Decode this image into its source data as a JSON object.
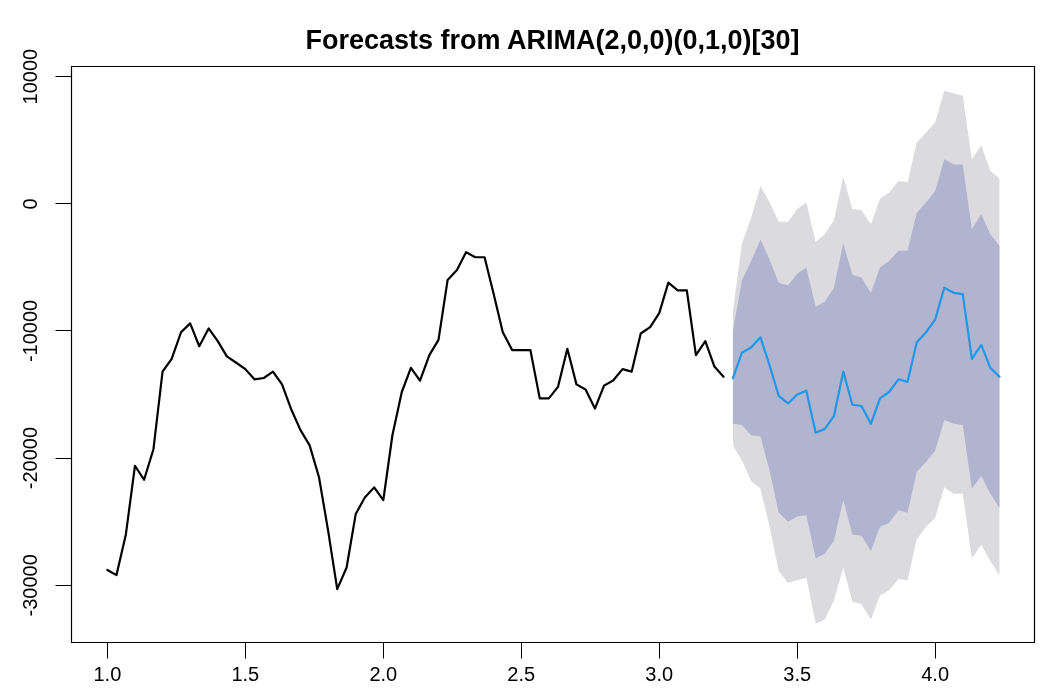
{
  "chart_data": {
    "type": "line",
    "title": "Forecasts from ARIMA(2,0,0)(0,1,0)[30]",
    "xlim": [
      0.87,
      4.36
    ],
    "ylim": [
      -34500,
      10800
    ],
    "xticks": [
      {
        "value": 1,
        "label": "1.0"
      },
      1.5,
      {
        "value": 2,
        "label": "2.0"
      },
      2.5,
      {
        "value": 3,
        "label": "3.0"
      },
      3.5,
      {
        "value": 4,
        "label": "4.0"
      }
    ],
    "yticks": [
      -30000,
      -20000,
      -10000,
      0,
      10000
    ],
    "grid": false,
    "series": [
      {
        "type": "line",
        "color": "#dbdbdf",
        "x": [
          3.267,
          3.3,
          3.333,
          3.367,
          3.4,
          3.433,
          3.467,
          3.5,
          3.533,
          3.567,
          3.6,
          3.633,
          3.667,
          3.7,
          3.733,
          3.767,
          3.8,
          3.833,
          3.867,
          3.9,
          3.933,
          3.967,
          4,
          4.033,
          4.067,
          4.1,
          4.133,
          4.167,
          4.2,
          4.233
        ],
        "values": [
          null,
          null,
          null,
          null,
          null,
          null,
          null,
          null,
          null,
          null,
          null,
          null,
          null,
          null,
          null,
          null,
          null,
          null,
          null,
          null,
          null,
          null,
          null,
          null,
          null,
          null,
          null,
          null,
          null,
          null
        ],
        "upper": [
          -8400,
          -3100,
          -1100,
          1400,
          100,
          -1400,
          -1400,
          -400,
          100,
          -3000,
          -2400,
          -1300,
          2100,
          -400,
          -500,
          -1600,
          400,
          900,
          1800,
          1700,
          4800,
          5600,
          6400,
          8900,
          8700,
          8500,
          3500,
          4600,
          2600,
          2000
        ],
        "lower": [
          -19000,
          -20200,
          -21800,
          -22400,
          -25400,
          -28900,
          -29800,
          -29600,
          -29400,
          -33000,
          -32700,
          -31200,
          -28600,
          -31300,
          -31500,
          -32700,
          -30800,
          -30400,
          -29500,
          -29600,
          -26400,
          -25400,
          -24700,
          -22300,
          -22800,
          -22800,
          -27900,
          -26800,
          -28100,
          -29200
        ]
      },
      {
        "type": "line",
        "color": "#b0b4cf",
        "x": [
          3.267,
          3.3,
          3.333,
          3.367,
          3.4,
          3.433,
          3.467,
          3.5,
          3.533,
          3.567,
          3.6,
          3.633,
          3.667,
          3.7,
          3.733,
          3.767,
          3.8,
          3.833,
          3.867,
          3.9,
          3.933,
          3.967,
          4,
          4.033,
          4.067,
          4.1,
          4.133,
          4.167,
          4.2,
          4.233
        ],
        "values": [
          null,
          null,
          null,
          null,
          null,
          null,
          null,
          null,
          null,
          null,
          null,
          null,
          null,
          null,
          null,
          null,
          null,
          null,
          null,
          null,
          null,
          null,
          null,
          null,
          null,
          null,
          null,
          null,
          null,
          null
        ],
        "upper": [
          -10000,
          -6000,
          -4500,
          -2800,
          -4400,
          -6200,
          -6400,
          -5500,
          -5000,
          -8100,
          -7700,
          -6600,
          -3100,
          -5600,
          -5800,
          -7000,
          -5000,
          -4500,
          -3700,
          -3700,
          -700,
          100,
          1000,
          3500,
          3100,
          3100,
          -2000,
          -800,
          -2400,
          -3300
        ],
        "lower": [
          -17300,
          -17400,
          -18200,
          -18300,
          -21000,
          -24300,
          -25000,
          -24600,
          -24500,
          -27900,
          -27500,
          -26500,
          -23300,
          -26000,
          -26100,
          -27300,
          -25400,
          -25100,
          -24100,
          -24300,
          -21100,
          -20300,
          -19400,
          -17000,
          -17300,
          -17400,
          -22400,
          -21400,
          -22800,
          -23900
        ]
      },
      {
        "type": "line",
        "color": "#000000",
        "x": [
          1,
          1.033,
          1.067,
          1.1,
          1.133,
          1.167,
          1.2,
          1.233,
          1.267,
          1.3,
          1.333,
          1.367,
          1.4,
          1.433,
          1.467,
          1.5,
          1.533,
          1.567,
          1.6,
          1.633,
          1.667,
          1.7,
          1.733,
          1.767,
          1.8,
          1.833,
          1.867,
          1.9,
          1.933,
          1.967,
          2,
          2.033,
          2.067,
          2.1,
          2.133,
          2.167,
          2.2,
          2.233,
          2.267,
          2.3,
          2.333,
          2.367,
          2.4,
          2.433,
          2.467,
          2.5,
          2.533,
          2.567,
          2.6,
          2.633,
          2.667,
          2.7,
          2.733,
          2.767,
          2.8,
          2.833,
          2.867,
          2.9,
          2.933,
          2.967,
          3,
          3.033,
          3.067,
          3.1,
          3.133,
          3.167,
          3.2,
          3.233
        ],
        "values": [
          -28800,
          -29200,
          -26000,
          -20600,
          -21700,
          -19300,
          -13200,
          -12200,
          -10100,
          -9400,
          -11200,
          -9800,
          -10800,
          -12000,
          -12500,
          -13000,
          -13800,
          -13700,
          -13200,
          -14200,
          -16200,
          -17800,
          -19000,
          -21500,
          -25700,
          -30300,
          -28600,
          -24400,
          -23100,
          -22300,
          -23300,
          -18200,
          -14800,
          -12900,
          -13900,
          -11900,
          -10700,
          -6000,
          -5200,
          -3800,
          -4200,
          -4200,
          -7100,
          -10100,
          -11500,
          -11500,
          -11500,
          -15300,
          -15300,
          -14400,
          -11400,
          -14200,
          -14600,
          -16100,
          -14300,
          -13900,
          -13000,
          -13200,
          -10200,
          -9700,
          -8600,
          -6200,
          -6800,
          -6800,
          -11900,
          -10800,
          -12800,
          -13600
        ]
      },
      {
        "type": "line",
        "color": "#2297e6",
        "x": [
          3.267,
          3.3,
          3.333,
          3.367,
          3.4,
          3.433,
          3.467,
          3.5,
          3.533,
          3.567,
          3.6,
          3.633,
          3.667,
          3.7,
          3.733,
          3.767,
          3.8,
          3.833,
          3.867,
          3.9,
          3.933,
          3.967,
          4,
          4.033,
          4.067,
          4.1,
          4.133,
          4.167,
          4.2,
          4.233
        ],
        "values": [
          -13700,
          -11700,
          -11300,
          -10500,
          -12700,
          -15100,
          -15700,
          -15000,
          -14700,
          -18000,
          -17700,
          -16700,
          -13200,
          -15800,
          -15900,
          -17300,
          -15300,
          -14800,
          -13800,
          -14000,
          -10900,
          -10100,
          -9100,
          -6600,
          -7000,
          -7100,
          -12200,
          -11100,
          -12900,
          -13600
        ]
      }
    ]
  }
}
